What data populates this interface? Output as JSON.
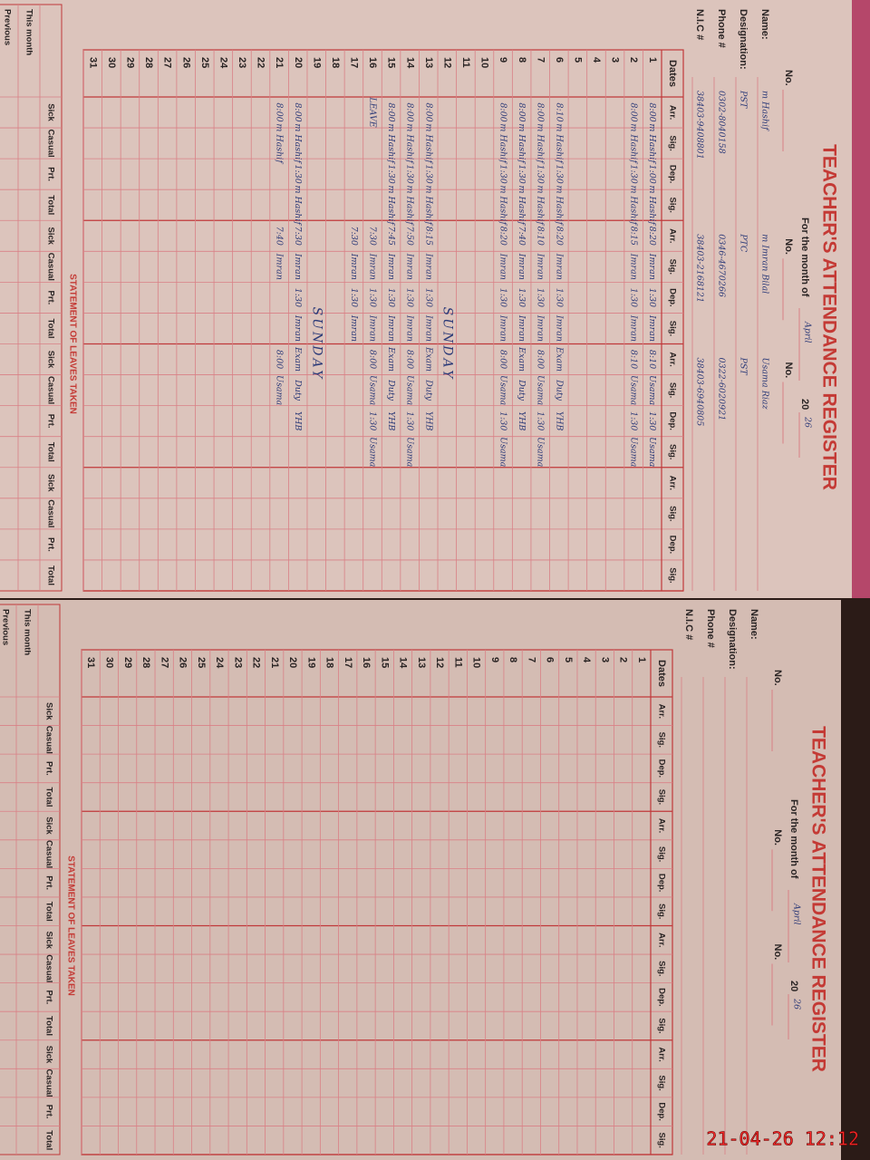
{
  "pages": [
    {
      "title": "TEACHER'S ATTENDANCE REGISTER",
      "month_label": "For the month of",
      "month": "April",
      "year_label": "20",
      "year": "26",
      "no_labels": [
        "No.",
        "No.",
        "No."
      ],
      "fields": [
        {
          "label": "Name:",
          "values": [
            "m Hashif",
            "m Imran Bilal",
            "Usama Riaz"
          ]
        },
        {
          "label": "Designation:",
          "values": [
            "PST",
            "PTC",
            "PST"
          ]
        },
        {
          "label": "Phone #",
          "values": [
            "0302-8040158",
            "0346-4670266",
            "0322-6020921"
          ]
        },
        {
          "label": "N.I.C #",
          "values": [
            "38403-9408801",
            "38403-2168121",
            "38403-6940805"
          ]
        }
      ],
      "dates_label": "Dates",
      "columns": [
        "Arr.",
        "Sig.",
        "Dep.",
        "Sig.",
        "Arr.",
        "Sig.",
        "Dep.",
        "Sig.",
        "Arr.",
        "Sig.",
        "Dep.",
        "Sig.",
        "Arr.",
        "Sig.",
        "Dep.",
        "Sig."
      ],
      "rows": [
        {
          "date": 1,
          "cells": [
            "8:00",
            "m Hashif",
            "1:00",
            "m Hashif",
            "8:20",
            "Imran",
            "1:30",
            "Imran",
            "8:10",
            "Usama",
            "1:30",
            "Usama",
            null,
            null,
            null,
            null
          ]
        },
        {
          "date": 2,
          "cells": [
            "8:00",
            "m Hashif",
            "1:30",
            "m Hashif",
            "8:15",
            "Imran",
            "1:30",
            "Imran",
            "8:10",
            "Usama",
            "1:30",
            "Usama",
            null,
            null,
            null,
            null
          ]
        },
        {
          "date": 3
        },
        {
          "date": 4
        },
        {
          "date": 5
        },
        {
          "date": 6,
          "cells": [
            "8:10",
            "m Hashif",
            "1:30",
            "m Hashif",
            "8:20",
            "Imran",
            "1:30",
            "Imran",
            "Exam",
            "Duty",
            "YHB",
            null,
            null,
            null,
            null,
            null
          ]
        },
        {
          "date": 7,
          "cells": [
            "8:00",
            "m Hashif",
            "1:30",
            "m Hashif",
            "8:10",
            "Imran",
            "1:30",
            "Imran",
            "8:00",
            "Usama",
            "1:30",
            "Usama",
            null,
            null,
            null,
            null
          ]
        },
        {
          "date": 8,
          "cells": [
            "8:00",
            "m Hashif",
            "1:30",
            "m Hashif",
            "7:40",
            "Imran",
            "1:30",
            "Imran",
            "Exam",
            "Duty",
            "YHB",
            null,
            null,
            null,
            null,
            null
          ]
        },
        {
          "date": 9,
          "cells": [
            "8:00",
            "m Hashif",
            "1:30",
            "m Hashif",
            "8:20",
            "Imran",
            "1:30",
            "Imran",
            "8:00",
            "Usama",
            "1:30",
            "Usama",
            null,
            null,
            null,
            null
          ]
        },
        {
          "date": 10
        },
        {
          "date": 11
        },
        {
          "date": 12,
          "note": "SUNDAY"
        },
        {
          "date": 13,
          "cells": [
            "8:00",
            "m Hashif",
            "1:30",
            "m Hashif",
            "8:15",
            "Imran",
            "1:30",
            "Imran",
            "Exam",
            "Duty",
            "YHB",
            null,
            null,
            null,
            null,
            null
          ]
        },
        {
          "date": 14,
          "cells": [
            "8:00",
            "m Hashif",
            "1:30",
            "m Hashif",
            "7:50",
            "Imran",
            "1:30",
            "Imran",
            "8:00",
            "Usama",
            "1:30",
            "Usama",
            null,
            null,
            null,
            null
          ]
        },
        {
          "date": 15,
          "cells": [
            "8:00",
            "m Hashif",
            "1:30",
            "m Hashif",
            "7:45",
            "Imran",
            "1:30",
            "Imran",
            "Exam",
            "Duty",
            "YHB",
            null,
            null,
            null,
            null,
            null
          ]
        },
        {
          "date": 16,
          "cells": [
            "LEAVE",
            null,
            null,
            null,
            "7:30",
            "Imran",
            "1:30",
            "Imran",
            "8:00",
            "Usama",
            "1:30",
            "Usama",
            null,
            null,
            null,
            null
          ]
        },
        {
          "date": 17,
          "cells": [
            null,
            null,
            null,
            null,
            "7:30",
            "Imran",
            "1:30",
            "Imran",
            null,
            null,
            null,
            null,
            null,
            null,
            null,
            null
          ]
        },
        {
          "date": 18
        },
        {
          "date": 19,
          "note": "SUNDAY"
        },
        {
          "date": 20,
          "cells": [
            "8:00",
            "m Hashif",
            "1:30",
            "m Hashif",
            "7:30",
            "Imran",
            "1:30",
            "Imran",
            "Exam",
            "Duty",
            "YHB",
            null,
            null,
            null,
            null,
            null
          ]
        },
        {
          "date": 21,
          "cells": [
            "8:00",
            "m Hashif",
            null,
            null,
            "7:40",
            "Imran",
            null,
            null,
            "8:00",
            "Usama",
            null,
            null,
            null,
            null,
            null,
            null
          ]
        },
        {
          "date": 22
        },
        {
          "date": 23
        },
        {
          "date": 24
        },
        {
          "date": 25
        },
        {
          "date": 26
        },
        {
          "date": 27
        },
        {
          "date": 28
        },
        {
          "date": 29
        },
        {
          "date": 30
        },
        {
          "date": 31
        }
      ],
      "leaves": {
        "title": "STATEMENT OF LEAVES TAKEN",
        "columns": [
          "Sick",
          "Casual",
          "Prt.",
          "Total",
          "Sick",
          "Casual",
          "Prt.",
          "Total",
          "Sick",
          "Casual",
          "Prt.",
          "Total",
          "Sick",
          "Casual",
          "Prt.",
          "Total"
        ],
        "rows": [
          "This month",
          "Previous"
        ]
      }
    },
    {
      "title": "TEACHER'S ATTENDANCE REGISTER",
      "month_label": "For the month of",
      "month": "April",
      "year_label": "20",
      "year": "26",
      "no_labels": [
        "No.",
        "No.",
        "No."
      ],
      "fields": [
        {
          "label": "Name:"
        },
        {
          "label": "Designation:"
        },
        {
          "label": "Phone #"
        },
        {
          "label": "N.I.C #"
        }
      ],
      "dates_label": "Dates",
      "columns": [
        "Arr.",
        "Sig.",
        "Dep.",
        "Sig.",
        "Arr.",
        "Sig.",
        "Dep.",
        "Sig.",
        "Arr.",
        "Sig.",
        "Dep.",
        "Sig.",
        "Arr.",
        "Sig.",
        "Dep.",
        "Sig."
      ],
      "rows": [
        {
          "date": 1
        },
        {
          "date": 2
        },
        {
          "date": 3
        },
        {
          "date": 4
        },
        {
          "date": 5
        },
        {
          "date": 6
        },
        {
          "date": 7
        },
        {
          "date": 8
        },
        {
          "date": 9
        },
        {
          "date": 10
        },
        {
          "date": 11
        },
        {
          "date": 12
        },
        {
          "date": 13
        },
        {
          "date": 14
        },
        {
          "date": 15
        },
        {
          "date": 16
        },
        {
          "date": 17
        },
        {
          "date": 18
        },
        {
          "date": 19
        },
        {
          "date": 20
        },
        {
          "date": 21
        },
        {
          "date": 22
        },
        {
          "date": 23
        },
        {
          "date": 24
        },
        {
          "date": 25
        },
        {
          "date": 26
        },
        {
          "date": 27
        },
        {
          "date": 28
        },
        {
          "date": 29
        },
        {
          "date": 30
        },
        {
          "date": 31
        }
      ],
      "leaves": {
        "title": "STATEMENT OF LEAVES TAKEN",
        "columns": [
          "Sick",
          "Casual",
          "Prt.",
          "Total",
          "Sick",
          "Casual",
          "Prt.",
          "Total",
          "Sick",
          "Casual",
          "Prt.",
          "Total",
          "Sick",
          "Casual",
          "Prt.",
          "Total"
        ],
        "rows": [
          "This month",
          "Previous"
        ]
      }
    }
  ],
  "timestamp": "21-04-26 12:12"
}
